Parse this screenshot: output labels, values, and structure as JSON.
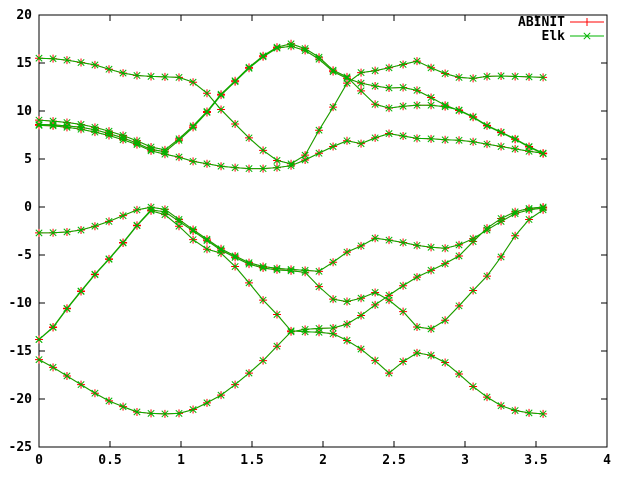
{
  "chart_data": {
    "type": "line",
    "title": "",
    "xlabel": "",
    "ylabel": "",
    "xlim": [
      0,
      4
    ],
    "ylim": [
      -25,
      20
    ],
    "grid": false,
    "background": "#ffffff",
    "axis_color": "#000000",
    "legend_position": "top-right-inside",
    "x_ticks": {
      "values": [
        0,
        0.5,
        1,
        1.5,
        2,
        2.5,
        3,
        3.5,
        4
      ],
      "labels": [
        "0",
        "0.5",
        "1",
        "1.5",
        "2",
        "2.5",
        "3",
        "3.5",
        "4"
      ]
    },
    "y_ticks": {
      "values": [
        -25,
        -20,
        -15,
        -10,
        -5,
        0,
        5,
        10,
        15,
        20
      ],
      "labels": [
        "-25",
        "-20",
        "-15",
        "-10",
        "-5",
        "0",
        "5",
        "10",
        "15",
        "20"
      ]
    },
    "series": [
      {
        "name": "ABINIT",
        "color": "#ff0000",
        "marker": "plus"
      },
      {
        "name": "Elk",
        "color": "#00b400",
        "marker": "cross"
      }
    ],
    "series_note": "both series plot the same 8 energy bands; curves coincide within line width",
    "x": [
      0,
      0.099,
      0.197,
      0.296,
      0.394,
      0.493,
      0.592,
      0.69,
      0.789,
      0.887,
      0.986,
      1.085,
      1.183,
      1.282,
      1.381,
      1.479,
      1.578,
      1.676,
      1.775,
      1.874,
      1.972,
      2.071,
      2.169,
      2.268,
      2.367,
      2.465,
      2.564,
      2.662,
      2.761,
      2.86,
      2.958,
      3.057,
      3.155,
      3.254,
      3.353,
      3.451,
      3.55
    ],
    "bands": [
      {
        "name": "band-1",
        "y": [
          -15.9,
          -16.7,
          -17.6,
          -18.5,
          -19.4,
          -20.2,
          -20.8,
          -21.35,
          -21.5,
          -21.55,
          -21.5,
          -21.1,
          -20.4,
          -19.6,
          -18.5,
          -17.3,
          -16.0,
          -14.5,
          -13.0,
          -12.75,
          -12.65,
          -12.6,
          -12.2,
          -11.3,
          -10.2,
          -9.2,
          -8.2,
          -7.3,
          -6.6,
          -5.9,
          -5.1,
          -3.6,
          -2.2,
          -1.2,
          -0.5,
          -0.15,
          0.0
        ]
      },
      {
        "name": "band-2",
        "y": [
          -13.8,
          -12.55,
          -10.6,
          -8.8,
          -7.05,
          -5.45,
          -3.75,
          -1.95,
          -0.4,
          -0.8,
          -2.0,
          -3.4,
          -4.4,
          -4.8,
          -6.2,
          -7.9,
          -9.7,
          -11.2,
          -12.9,
          -13.0,
          -13.05,
          -13.2,
          -13.9,
          -14.8,
          -16.0,
          -17.3,
          -16.1,
          -15.2,
          -15.45,
          -16.2,
          -17.4,
          -18.7,
          -19.8,
          -20.7,
          -21.2,
          -21.45,
          -21.55
        ]
      },
      {
        "name": "band-3",
        "y": [
          -13.8,
          -12.5,
          -10.55,
          -8.75,
          -7.0,
          -5.4,
          -3.7,
          -1.9,
          -0.3,
          -0.5,
          -1.5,
          -2.5,
          -3.5,
          -4.5,
          -5.25,
          -5.95,
          -6.35,
          -6.55,
          -6.65,
          -6.8,
          -8.3,
          -9.6,
          -9.85,
          -9.5,
          -8.9,
          -9.7,
          -10.9,
          -12.5,
          -12.7,
          -11.8,
          -10.3,
          -8.7,
          -7.2,
          -5.2,
          -3.0,
          -1.3,
          -0.3
        ]
      },
      {
        "name": "band-4",
        "y": [
          -2.7,
          -2.68,
          -2.6,
          -2.4,
          -2.0,
          -1.5,
          -0.9,
          -0.3,
          -0.02,
          -0.25,
          -1.3,
          -2.35,
          -3.35,
          -4.35,
          -5.1,
          -5.8,
          -6.2,
          -6.4,
          -6.5,
          -6.6,
          -6.7,
          -5.75,
          -4.7,
          -4.05,
          -3.25,
          -3.45,
          -3.7,
          -4.0,
          -4.2,
          -4.3,
          -3.95,
          -3.3,
          -2.4,
          -1.5,
          -0.7,
          -0.3,
          -0.1
        ]
      },
      {
        "name": "band-5",
        "y": [
          8.5,
          8.45,
          8.3,
          8.1,
          7.8,
          7.45,
          7.0,
          6.5,
          5.85,
          5.5,
          5.2,
          4.75,
          4.5,
          4.25,
          4.1,
          4.0,
          4.0,
          4.1,
          4.3,
          4.9,
          5.6,
          6.3,
          6.9,
          6.6,
          7.2,
          7.65,
          7.4,
          7.15,
          7.1,
          7.0,
          6.95,
          6.8,
          6.55,
          6.3,
          6.05,
          5.8,
          5.6
        ]
      },
      {
        "name": "band-6",
        "y": [
          8.6,
          8.55,
          8.45,
          8.3,
          8.05,
          7.65,
          7.2,
          6.65,
          6.0,
          5.75,
          6.95,
          8.3,
          9.85,
          11.65,
          13.05,
          14.45,
          15.65,
          16.55,
          16.75,
          16.3,
          15.4,
          14.1,
          13.4,
          12.9,
          12.6,
          12.4,
          12.45,
          12.15,
          11.4,
          10.6,
          10.05,
          9.35,
          8.45,
          7.75,
          7.05,
          6.25,
          5.55
        ]
      },
      {
        "name": "band-7",
        "y": [
          9.05,
          8.95,
          8.8,
          8.6,
          8.3,
          7.9,
          7.45,
          6.9,
          6.25,
          5.95,
          7.1,
          8.45,
          9.95,
          11.75,
          13.15,
          14.55,
          15.75,
          16.65,
          17.0,
          16.5,
          15.6,
          14.25,
          13.55,
          12.1,
          10.7,
          10.3,
          10.5,
          10.6,
          10.6,
          10.45,
          10.1,
          9.4,
          8.5,
          7.8,
          7.1,
          6.3,
          5.6
        ]
      },
      {
        "name": "band-8",
        "y": [
          15.5,
          15.45,
          15.3,
          15.05,
          14.8,
          14.35,
          13.95,
          13.7,
          13.6,
          13.55,
          13.5,
          13.0,
          11.85,
          10.15,
          8.65,
          7.2,
          5.9,
          4.85,
          4.5,
          5.4,
          8.0,
          10.4,
          12.9,
          14.0,
          14.2,
          14.5,
          14.85,
          15.2,
          14.5,
          13.9,
          13.5,
          13.4,
          13.6,
          13.65,
          13.6,
          13.55,
          13.5
        ]
      }
    ]
  }
}
